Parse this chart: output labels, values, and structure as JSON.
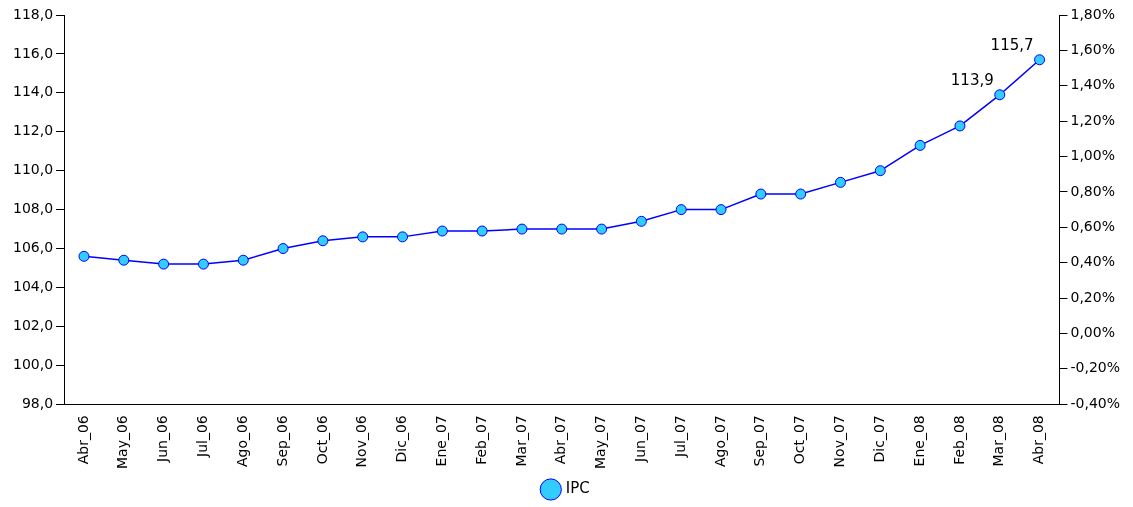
{
  "chart_data": {
    "type": "line",
    "categories": [
      "Abr_06",
      "May_06",
      "Jun_06",
      "Jul_06",
      "Ago_06",
      "Sep_06",
      "Oct_06",
      "Nov_06",
      "Dic_06",
      "Ene_07",
      "Feb_07",
      "Mar_07",
      "Abr_07",
      "May_07",
      "Jun_07",
      "Jul_07",
      "Ago_07",
      "Sep_07",
      "Oct_07",
      "Nov_07",
      "Dic_07",
      "Ene_08",
      "Feb_08",
      "Mar_08",
      "Abr_08"
    ],
    "series": [
      {
        "name": "IPC",
        "color": "#0000ff",
        "values": [
          105.6,
          105.4,
          105.2,
          105.2,
          105.4,
          106.0,
          106.4,
          106.6,
          106.6,
          106.9,
          106.9,
          107.0,
          107.0,
          107.0,
          107.4,
          108.0,
          108.0,
          108.8,
          108.8,
          109.4,
          110.0,
          111.3,
          112.3,
          113.9,
          115.7
        ],
        "value_labels": [
          null,
          null,
          null,
          null,
          null,
          null,
          null,
          null,
          null,
          null,
          null,
          null,
          null,
          null,
          null,
          null,
          null,
          null,
          null,
          null,
          null,
          null,
          null,
          "113,9",
          "115,7"
        ]
      }
    ],
    "ylim": [
      98,
      118
    ],
    "yticks": [
      {
        "value": 98,
        "label": "98,0"
      },
      {
        "value": 100,
        "label": "100,0"
      },
      {
        "value": 102,
        "label": "102,0"
      },
      {
        "value": 104,
        "label": "104,0"
      },
      {
        "value": 106,
        "label": "106,0"
      },
      {
        "value": 108,
        "label": "108,0"
      },
      {
        "value": 110,
        "label": "110,0"
      },
      {
        "value": 112,
        "label": "112,0"
      },
      {
        "value": 114,
        "label": "114,0"
      },
      {
        "value": 116,
        "label": "116,0"
      },
      {
        "value": 118,
        "label": "118,0"
      }
    ],
    "y2lim": [
      -0.4,
      1.8
    ],
    "y2ticks": [
      {
        "value": -0.4,
        "label": "-0,40%"
      },
      {
        "value": -0.2,
        "label": "-0,20%"
      },
      {
        "value": 0,
        "label": "0,00%"
      },
      {
        "value": 0.2,
        "label": "0,20%"
      },
      {
        "value": 0.4,
        "label": "0,40%"
      },
      {
        "value": 0.6,
        "label": "0,60%"
      },
      {
        "value": 0.8,
        "label": "0,80%"
      },
      {
        "value": 1.0,
        "label": "1,00%"
      },
      {
        "value": 1.2,
        "label": "1,20%"
      },
      {
        "value": 1.4,
        "label": "1,40%"
      },
      {
        "value": 1.6,
        "label": "1,60%"
      },
      {
        "value": 1.8,
        "label": "1,80%"
      }
    ],
    "grid": false,
    "legend": "bottom",
    "marker": "circle",
    "line_style": "solid"
  }
}
